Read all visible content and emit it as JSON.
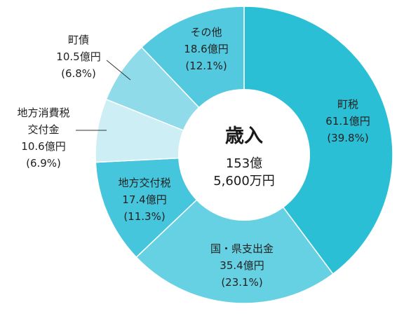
{
  "chart_data": {
    "type": "pie",
    "center": {
      "title": "歳入",
      "total_line1": "153億",
      "total_line2": "5,600万円"
    },
    "slices": [
      {
        "id": "chozei",
        "name": "町税",
        "amount": "61.1億円",
        "percent_label": "(39.8%)",
        "value": 39.8,
        "color": "#2bbfd6"
      },
      {
        "id": "kokuken",
        "name": "国・県支出金",
        "amount": "35.4億円",
        "percent_label": "(23.1%)",
        "value": 23.1,
        "color": "#66d1e3"
      },
      {
        "id": "kofuzei",
        "name": "地方交付税",
        "amount": "17.4億円",
        "percent_label": "(11.3%)",
        "value": 11.3,
        "color": "#45c6dc"
      },
      {
        "id": "shohizei",
        "name_line1": "地方消費税",
        "name_line2": "交付金",
        "amount": "10.6億円",
        "percent_label": "(6.9%)",
        "value": 6.9,
        "color": "#cdeef4"
      },
      {
        "id": "chosai",
        "name": "町債",
        "amount": "10.5億円",
        "percent_label": "(6.8%)",
        "value": 6.8,
        "color": "#8fdbe9"
      },
      {
        "id": "sonota",
        "name": "その他",
        "amount": "18.6億円",
        "percent_label": "(12.1%)",
        "value": 12.1,
        "color": "#53c9df"
      }
    ]
  }
}
